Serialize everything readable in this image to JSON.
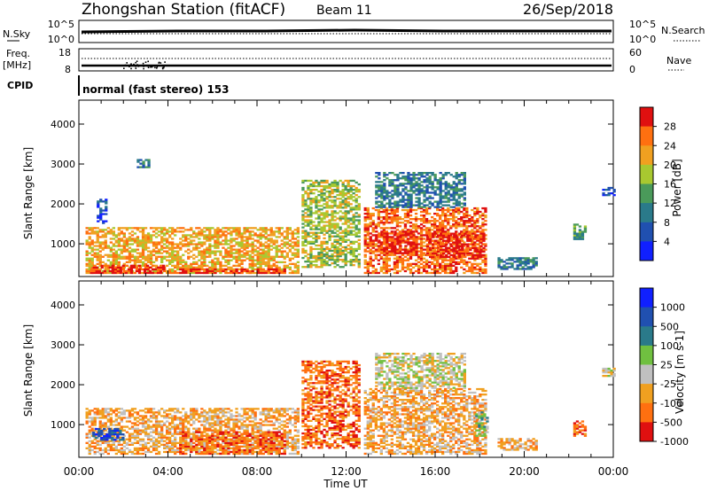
{
  "header": {
    "title": "Zhongshan Station (fitACF)",
    "beam": "Beam 11",
    "date": "26/Sep/2018"
  },
  "status_panels": {
    "nsky_label": "N.Sky",
    "nsky_ticks": [
      "10^5",
      "10^0"
    ],
    "nsearch_label": "N.Search",
    "nsearch_ticks": [
      "10^5",
      "10^0"
    ],
    "freq_label": "Freq.",
    "freq_unit": "[MHz]",
    "freq_ticks": [
      "18",
      "8"
    ],
    "nave_label": "Nave",
    "nave_ticks": [
      "60",
      "0"
    ],
    "cpid_label": "CPID",
    "cpid_value": "normal (fast stereo) 153"
  },
  "chart_data": [
    {
      "type": "heatmap",
      "title": "",
      "parameter": "Power",
      "colorbar_label": "Power [dB]",
      "ylabel": "Slant Range [km]",
      "xlabel": "",
      "ylim": [
        180,
        4600
      ],
      "xlim": [
        0,
        24
      ],
      "yticks": [
        "1000",
        "2000",
        "3000",
        "4000"
      ],
      "colorbar_ticks": [
        "4",
        "8",
        "12",
        "16",
        "20",
        "24",
        "28"
      ],
      "colors": [
        "#1020ff",
        "#2050b0",
        "#2a7a8a",
        "#4a9a5a",
        "#a8c830",
        "#f0a020",
        "#ff7010",
        "#e01010"
      ],
      "regions": [
        {
          "t0": 0.3,
          "t1": 9.8,
          "r0": 250,
          "r1": 1400,
          "level": 5
        },
        {
          "t0": 0.5,
          "t1": 3.8,
          "r0": 250,
          "r1": 450,
          "level": 7
        },
        {
          "t0": 4.5,
          "t1": 9.2,
          "r0": 250,
          "r1": 380,
          "level": 7
        },
        {
          "t0": 0.8,
          "t1": 1.2,
          "r0": 1500,
          "r1": 2100,
          "level": 1
        },
        {
          "t0": 2.6,
          "t1": 3.2,
          "r0": 2900,
          "r1": 3100,
          "level": 2
        },
        {
          "t0": 10.0,
          "t1": 12.6,
          "r0": 400,
          "r1": 2600,
          "level": 4
        },
        {
          "t0": 12.8,
          "t1": 18.3,
          "r0": 250,
          "r1": 1900,
          "level": 6
        },
        {
          "t0": 13.3,
          "t1": 15.2,
          "r0": 700,
          "r1": 1300,
          "level": 7
        },
        {
          "t0": 15.6,
          "t1": 18.2,
          "r0": 650,
          "r1": 1250,
          "level": 7
        },
        {
          "t0": 13.3,
          "t1": 17.3,
          "r0": 1900,
          "r1": 2800,
          "level": 2
        },
        {
          "t0": 18.8,
          "t1": 20.6,
          "r0": 350,
          "r1": 650,
          "level": 2
        },
        {
          "t0": 22.2,
          "t1": 22.8,
          "r0": 1100,
          "r1": 1500,
          "level": 3
        },
        {
          "t0": 23.5,
          "t1": 24.0,
          "r0": 2200,
          "r1": 2400,
          "level": 1
        }
      ]
    },
    {
      "type": "heatmap",
      "title": "",
      "parameter": "Velocity",
      "colorbar_label": "Velocity [m s-1]",
      "ylabel": "Slant Range [km]",
      "xlabel": "Time UT",
      "ylim": [
        180,
        4600
      ],
      "xlim": [
        0,
        24
      ],
      "xticks": [
        "00:00",
        "04:00",
        "08:00",
        "12:00",
        "16:00",
        "20:00",
        "00:00"
      ],
      "yticks": [
        "1000",
        "2000",
        "3000",
        "4000"
      ],
      "colorbar_ticks": [
        "1000",
        "500",
        "100",
        "25",
        "-25",
        "-100",
        "-500",
        "-1000"
      ],
      "colors": [
        "#e01010",
        "#ff7010",
        "#f0a020",
        "#c0c0c0",
        "#70c040",
        "#2a7a8a",
        "#2050b0",
        "#1020ff"
      ],
      "regions": [
        {
          "t0": 0.3,
          "t1": 9.8,
          "r0": 250,
          "r1": 1400,
          "level": 2
        },
        {
          "t0": 4.5,
          "t1": 9.2,
          "r0": 250,
          "r1": 800,
          "level": 1
        },
        {
          "t0": 0.6,
          "t1": 2.0,
          "r0": 600,
          "r1": 900,
          "level": 6
        },
        {
          "t0": 10.0,
          "t1": 12.6,
          "r0": 400,
          "r1": 2600,
          "level": 1
        },
        {
          "t0": 12.8,
          "t1": 18.3,
          "r0": 250,
          "r1": 1900,
          "level": 2
        },
        {
          "t0": 13.3,
          "t1": 17.3,
          "r0": 1900,
          "r1": 2800,
          "level": 3
        },
        {
          "t0": 17.8,
          "t1": 18.4,
          "r0": 700,
          "r1": 1300,
          "level": 4
        },
        {
          "t0": 18.8,
          "t1": 20.6,
          "r0": 350,
          "r1": 650,
          "level": 2
        },
        {
          "t0": 22.2,
          "t1": 22.8,
          "r0": 700,
          "r1": 1100,
          "level": 1
        },
        {
          "t0": 23.5,
          "t1": 24.0,
          "r0": 2200,
          "r1": 2400,
          "level": 3
        }
      ]
    }
  ]
}
